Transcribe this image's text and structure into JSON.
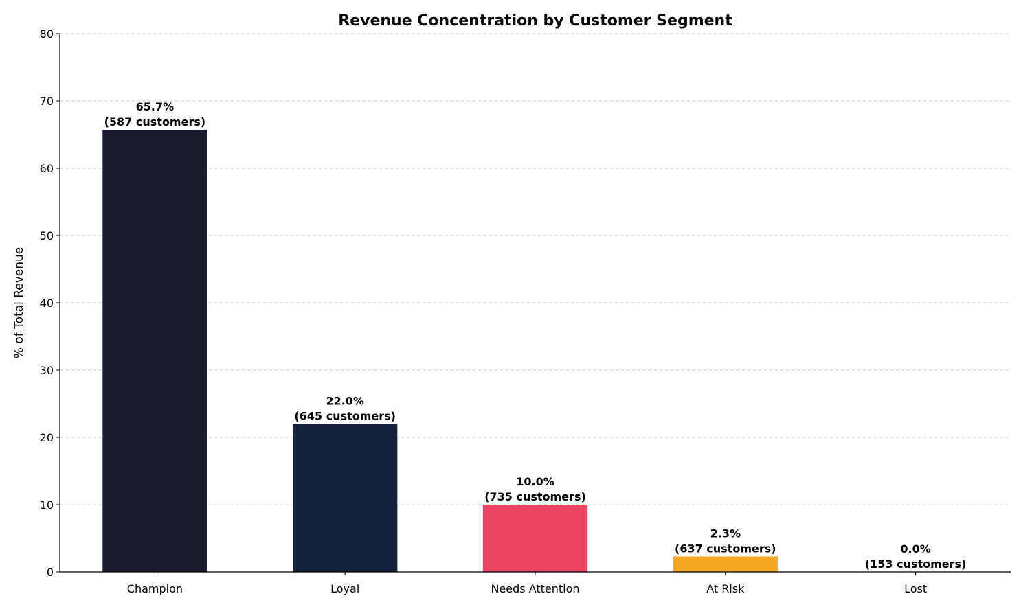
{
  "chart_data": {
    "type": "bar",
    "title": "Revenue Concentration by Customer Segment",
    "xlabel": "",
    "ylabel": "% of Total Revenue",
    "ylim": [
      0,
      80
    ],
    "yticks": [
      0,
      10,
      20,
      30,
      40,
      50,
      60,
      70,
      80
    ],
    "grid": "y-dashed",
    "categories": [
      "Champion",
      "Loyal",
      "Needs Attention",
      "At Risk",
      "Lost"
    ],
    "values": [
      65.7,
      22.0,
      10.0,
      2.3,
      0.0
    ],
    "colors": [
      "#1a1a2e",
      "#16213e",
      "#e94560",
      "#f5a623",
      "#cccccc"
    ],
    "data_labels": [
      [
        "65.7%",
        "(587 customers)"
      ],
      [
        "22.0%",
        "(645 customers)"
      ],
      [
        "10.0%",
        "(735 customers)"
      ],
      [
        "2.3%",
        "(637 customers)"
      ],
      [
        "0.0%",
        "(153 customers)"
      ]
    ]
  }
}
